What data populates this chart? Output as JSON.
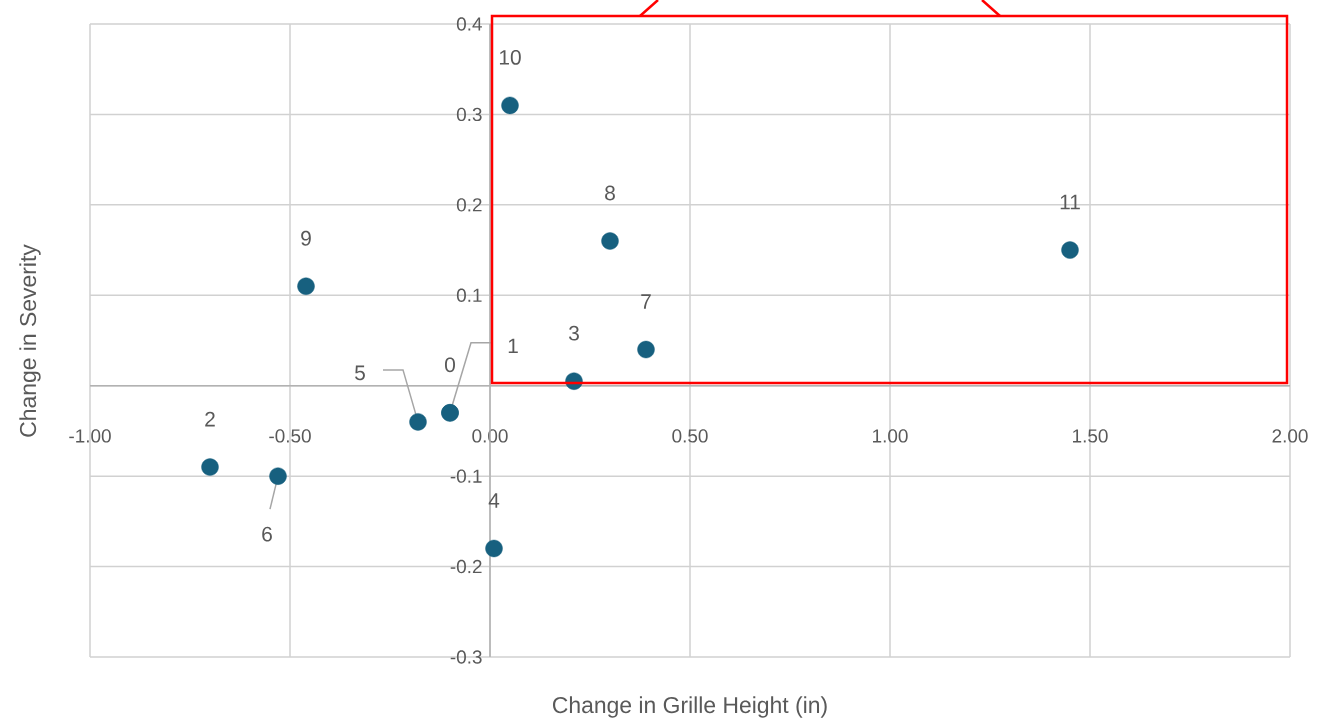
{
  "chart_data": {
    "type": "scatter",
    "xlabel": "Change in Grille Height (in)",
    "ylabel": "Change in Severity",
    "x": [
      -0.1,
      -0.1,
      -0.7,
      0.21,
      0.01,
      -0.18,
      -0.53,
      0.39,
      0.3,
      -0.46,
      0.05,
      1.45
    ],
    "values": [
      -0.03,
      -0.03,
      -0.09,
      0.005,
      -0.18,
      -0.04,
      -0.1,
      0.04,
      0.16,
      0.11,
      0.31,
      0.15
    ],
    "color": "#17607f",
    "marker": "circle",
    "grid": true,
    "xlim": [
      -1,
      2
    ],
    "ylim": [
      -0.3,
      0.4
    ],
    "xticks": [
      {
        "value": -1,
        "label": "-1.00"
      },
      {
        "value": -0.5,
        "label": "-0.50"
      },
      {
        "value": 0,
        "label": "0.00"
      },
      {
        "value": 0.5,
        "label": "0.50"
      },
      {
        "value": 1,
        "label": "1.00"
      },
      {
        "value": 1.5,
        "label": "1.50"
      },
      {
        "value": 2,
        "label": "2.00"
      }
    ],
    "yticks": [
      -0.3,
      -0.2,
      -0.1,
      {
        "value": 0,
        "label": null
      },
      0.1,
      0.2,
      0.3,
      0.4
    ],
    "annotations": [
      {
        "text": "0",
        "x": -0.1,
        "y": -0.03
      },
      {
        "text": "1",
        "x": -0.1,
        "y": -0.03
      },
      {
        "text": "2",
        "x": -0.7,
        "y": -0.09
      },
      {
        "text": "3",
        "x": 0.21,
        "y": 0.005
      },
      {
        "text": "4",
        "x": 0.01,
        "y": -0.18
      },
      {
        "text": "5",
        "x": -0.18,
        "y": -0.04
      },
      {
        "text": "6",
        "x": -0.53,
        "y": -0.1
      },
      {
        "text": "7",
        "x": 0.39,
        "y": 0.04
      },
      {
        "text": "8",
        "x": 0.3,
        "y": 0.16
      },
      {
        "text": "9",
        "x": -0.46,
        "y": 0.11
      },
      {
        "text": "10",
        "x": 0.05,
        "y": 0.31
      },
      {
        "text": "11",
        "x": 1.45,
        "y": 0.15
      }
    ]
  }
}
